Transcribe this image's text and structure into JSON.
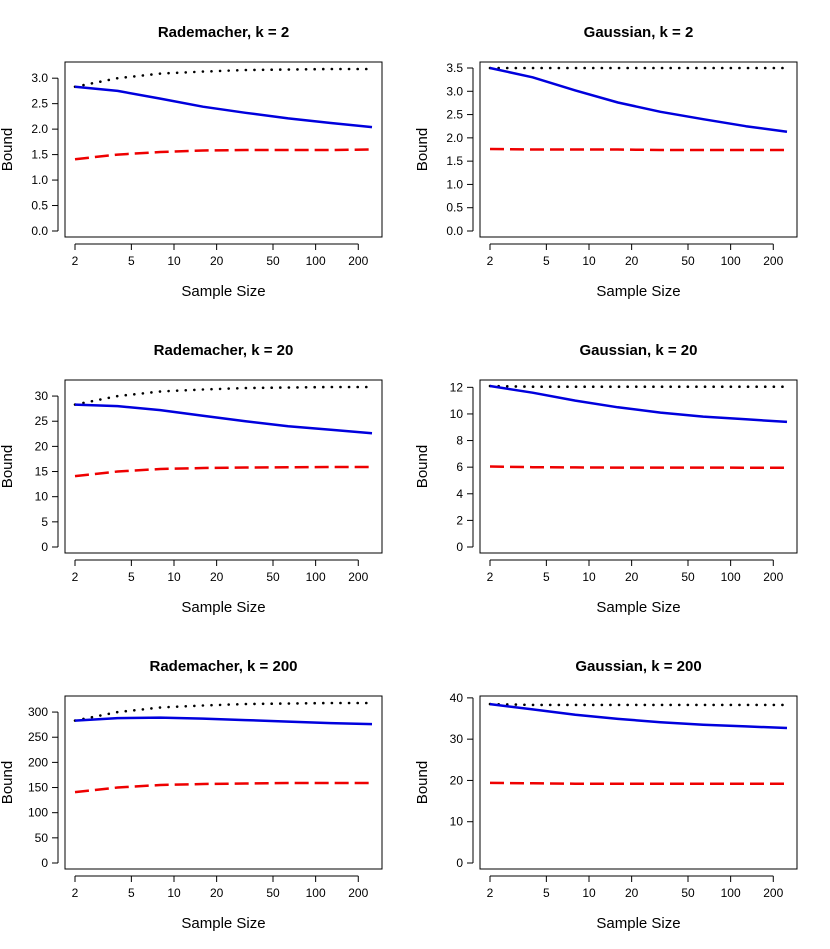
{
  "chart_data": [
    {
      "type": "line",
      "title": "Rademacher, k = 2",
      "xlabel": "Sample Size",
      "ylabel": "Bound",
      "x_scale": "log",
      "xlim": [
        2,
        250
      ],
      "ylim": [
        0,
        3.2
      ],
      "x_ticks": [
        2,
        5,
        10,
        20,
        50,
        100,
        200
      ],
      "y_ticks": [
        "0.0",
        "0.5",
        "1.0",
        "1.5",
        "2.0",
        "2.5",
        "3.0"
      ],
      "x": [
        2,
        4,
        8,
        16,
        32,
        64,
        128,
        250
      ],
      "series": [
        {
          "name": "dotted",
          "color": "#000000",
          "style": "dotted",
          "values": [
            2.83,
            3.0,
            3.09,
            3.13,
            3.16,
            3.17,
            3.18,
            3.18
          ]
        },
        {
          "name": "solid",
          "color": "#0000dd",
          "style": "solid",
          "values": [
            2.83,
            2.75,
            2.6,
            2.44,
            2.32,
            2.21,
            2.12,
            2.04
          ]
        },
        {
          "name": "dashed",
          "color": "#ee0000",
          "style": "dashed",
          "values": [
            1.41,
            1.5,
            1.55,
            1.58,
            1.59,
            1.59,
            1.59,
            1.6
          ]
        }
      ]
    },
    {
      "type": "line",
      "title": "Gaussian, k = 2",
      "xlabel": "Sample Size",
      "ylabel": "Bound",
      "x_scale": "log",
      "xlim": [
        2,
        250
      ],
      "ylim": [
        0,
        3.5
      ],
      "x_ticks": [
        2,
        5,
        10,
        20,
        50,
        100,
        200
      ],
      "y_ticks": [
        "0.0",
        "0.5",
        "1.0",
        "1.5",
        "2.0",
        "2.5",
        "3.0",
        "3.5"
      ],
      "x": [
        2,
        4,
        8,
        16,
        32,
        64,
        128,
        250
      ],
      "series": [
        {
          "name": "dotted",
          "color": "#000000",
          "style": "dotted",
          "values": [
            3.5,
            3.5,
            3.5,
            3.5,
            3.5,
            3.5,
            3.5,
            3.5
          ]
        },
        {
          "name": "solid",
          "color": "#0000dd",
          "style": "solid",
          "values": [
            3.5,
            3.3,
            3.02,
            2.76,
            2.56,
            2.4,
            2.25,
            2.13
          ]
        },
        {
          "name": "dashed",
          "color": "#ee0000",
          "style": "dashed",
          "values": [
            1.76,
            1.75,
            1.75,
            1.75,
            1.74,
            1.74,
            1.74,
            1.74
          ]
        }
      ]
    },
    {
      "type": "line",
      "title": "Rademacher, k = 20",
      "xlabel": "Sample Size",
      "ylabel": "Bound",
      "x_scale": "log",
      "xlim": [
        2,
        250
      ],
      "ylim": [
        0,
        32
      ],
      "x_ticks": [
        2,
        5,
        10,
        20,
        50,
        100,
        200
      ],
      "y_ticks": [
        "0",
        "5",
        "10",
        "15",
        "20",
        "25",
        "30"
      ],
      "x": [
        2,
        4,
        8,
        16,
        32,
        64,
        128,
        250
      ],
      "series": [
        {
          "name": "dotted",
          "color": "#000000",
          "style": "dotted",
          "values": [
            28.3,
            30.0,
            30.9,
            31.3,
            31.6,
            31.7,
            31.8,
            31.8
          ]
        },
        {
          "name": "solid",
          "color": "#0000dd",
          "style": "solid",
          "values": [
            28.3,
            28.0,
            27.2,
            26.1,
            25.0,
            24.0,
            23.3,
            22.6
          ]
        },
        {
          "name": "dashed",
          "color": "#ee0000",
          "style": "dashed",
          "values": [
            14.1,
            15.0,
            15.5,
            15.7,
            15.8,
            15.85,
            15.9,
            15.9
          ]
        }
      ]
    },
    {
      "type": "line",
      "title": "Gaussian, k = 20",
      "xlabel": "Sample Size",
      "ylabel": "Bound",
      "x_scale": "log",
      "xlim": [
        2,
        250
      ],
      "ylim": [
        0,
        12.1
      ],
      "x_ticks": [
        2,
        5,
        10,
        20,
        50,
        100,
        200
      ],
      "y_ticks": [
        "0",
        "2",
        "4",
        "6",
        "8",
        "10",
        "12"
      ],
      "x": [
        2,
        4,
        8,
        16,
        32,
        64,
        128,
        250
      ],
      "series": [
        {
          "name": "dotted",
          "color": "#000000",
          "style": "dotted",
          "values": [
            12.1,
            12.05,
            12.05,
            12.05,
            12.05,
            12.05,
            12.05,
            12.05
          ]
        },
        {
          "name": "solid",
          "color": "#0000dd",
          "style": "solid",
          "values": [
            12.1,
            11.6,
            11.0,
            10.5,
            10.1,
            9.8,
            9.6,
            9.4
          ]
        },
        {
          "name": "dashed",
          "color": "#ee0000",
          "style": "dashed",
          "values": [
            6.05,
            6.0,
            5.98,
            5.97,
            5.97,
            5.97,
            5.96,
            5.96
          ]
        }
      ]
    },
    {
      "type": "line",
      "title": "Rademacher, k = 200",
      "xlabel": "Sample Size",
      "ylabel": "Bound",
      "x_scale": "log",
      "xlim": [
        2,
        250
      ],
      "ylim": [
        0,
        320
      ],
      "x_ticks": [
        2,
        5,
        10,
        20,
        50,
        100,
        200
      ],
      "y_ticks": [
        "0",
        "50",
        "100",
        "150",
        "200",
        "250",
        "300"
      ],
      "x": [
        2,
        4,
        8,
        16,
        32,
        64,
        128,
        250
      ],
      "series": [
        {
          "name": "dotted",
          "color": "#000000",
          "style": "dotted",
          "values": [
            283,
            300,
            309,
            313,
            316,
            317,
            318,
            318
          ]
        },
        {
          "name": "solid",
          "color": "#0000dd",
          "style": "solid",
          "values": [
            283,
            288,
            289,
            287,
            284,
            281,
            278,
            276
          ]
        },
        {
          "name": "dashed",
          "color": "#ee0000",
          "style": "dashed",
          "values": [
            141,
            150,
            155,
            157,
            158,
            159,
            159,
            159
          ]
        }
      ]
    },
    {
      "type": "line",
      "title": "Gaussian, k = 200",
      "xlabel": "Sample Size",
      "ylabel": "Bound",
      "x_scale": "log",
      "xlim": [
        2,
        250
      ],
      "ylim": [
        0,
        39
      ],
      "x_ticks": [
        2,
        5,
        10,
        20,
        50,
        100,
        200
      ],
      "y_ticks": [
        "0",
        "10",
        "20",
        "30",
        "40"
      ],
      "x": [
        2,
        4,
        8,
        16,
        32,
        64,
        128,
        250
      ],
      "series": [
        {
          "name": "dotted",
          "color": "#000000",
          "style": "dotted",
          "values": [
            38.5,
            38.3,
            38.3,
            38.3,
            38.3,
            38.3,
            38.3,
            38.3
          ]
        },
        {
          "name": "solid",
          "color": "#0000dd",
          "style": "solid",
          "values": [
            38.5,
            37.2,
            35.9,
            34.9,
            34.1,
            33.5,
            33.1,
            32.7
          ]
        },
        {
          "name": "dashed",
          "color": "#ee0000",
          "style": "dashed",
          "values": [
            19.4,
            19.3,
            19.2,
            19.2,
            19.2,
            19.2,
            19.2,
            19.2
          ]
        }
      ]
    }
  ]
}
